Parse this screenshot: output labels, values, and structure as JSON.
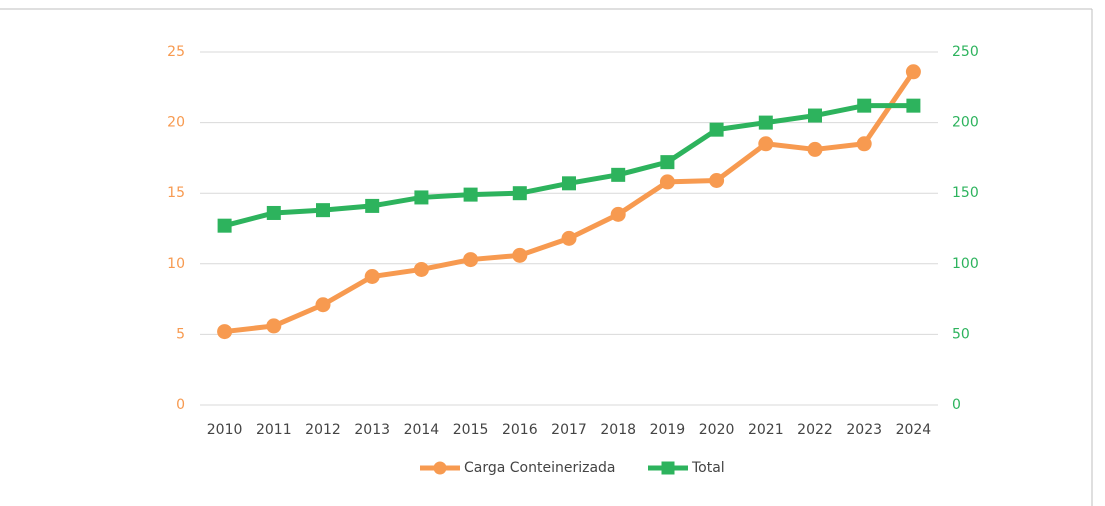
{
  "chart_data": {
    "type": "line",
    "categories": [
      "2010",
      "2011",
      "2012",
      "2013",
      "2014",
      "2015",
      "2016",
      "2017",
      "2018",
      "2019",
      "2020",
      "2021",
      "2022",
      "2023",
      "2024"
    ],
    "series": [
      {
        "name": "Carga Conteinerizada",
        "color": "#f79a50",
        "marker": "circle",
        "axis": "y",
        "values": [
          5.2,
          5.6,
          7.1,
          9.1,
          9.6,
          10.3,
          10.6,
          11.8,
          13.5,
          15.8,
          15.9,
          18.5,
          18.1,
          18.5,
          23.6
        ]
      },
      {
        "name": "Total",
        "color": "#2db35d",
        "marker": "square",
        "axis": "y2",
        "values": [
          127,
          136,
          138,
          141,
          147,
          149,
          150,
          157,
          163,
          172,
          195,
          200,
          205,
          212,
          212
        ]
      }
    ],
    "ylim": [
      0,
      25
    ],
    "yticks": [
      0,
      5,
      10,
      15,
      20,
      25
    ],
    "ycolor": "#f79a50",
    "y2lim": [
      0,
      250
    ],
    "y2ticks": [
      0,
      50,
      100,
      150,
      200,
      250
    ],
    "y2color": "#2db35d",
    "grid": true,
    "legend": "bottom"
  }
}
